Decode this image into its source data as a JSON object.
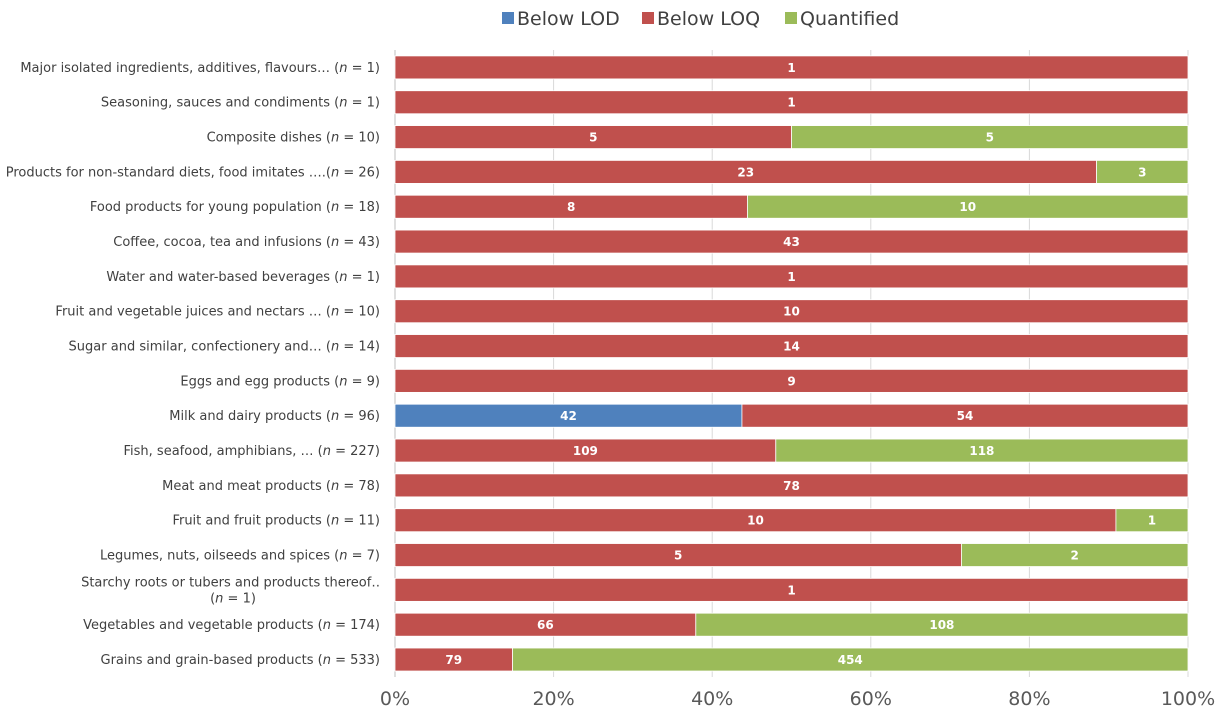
{
  "chart_data": {
    "type": "bar",
    "orientation": "horizontal",
    "stacking": "percent",
    "title": "",
    "xlabel": "",
    "ylabel": "",
    "xlim": [
      0,
      100
    ],
    "x_ticks": [
      "0%",
      "20%",
      "40%",
      "60%",
      "80%",
      "100%"
    ],
    "grid": true,
    "legend_position": "top",
    "legend": [
      "Below LOD",
      "Below LOQ",
      "Quantified"
    ],
    "colors": {
      "Below LOD": "#4f81bd",
      "Below LOQ": "#c0504d",
      "Quantified": "#9bbb59"
    },
    "categories": [
      {
        "lines": [
          [
            "Major isolated ingredients, additives, flavours… (",
            "n",
            " = 1)"
          ]
        ]
      },
      {
        "lines": [
          [
            "Seasoning, sauces and condiments (",
            "n",
            " = 1)"
          ]
        ]
      },
      {
        "lines": [
          [
            "Composite dishes (",
            "n",
            " = 10)"
          ]
        ]
      },
      {
        "lines": [
          [
            "Products for non-standard diets, food imitates ….(",
            "n",
            " = 26)"
          ]
        ]
      },
      {
        "lines": [
          [
            "Food products for young population (",
            "n",
            " = 18)"
          ]
        ]
      },
      {
        "lines": [
          [
            "Coffee, cocoa, tea and infusions (",
            "n",
            " = 43)"
          ]
        ]
      },
      {
        "lines": [
          [
            "Water and water-based beverages (",
            "n",
            " = 1)"
          ]
        ]
      },
      {
        "lines": [
          [
            "Fruit and vegetable juices and nectars … (",
            "n",
            " = 10)"
          ]
        ]
      },
      {
        "lines": [
          [
            "Sugar and similar, confectionery and… (",
            "n",
            " = 14)"
          ]
        ]
      },
      {
        "lines": [
          [
            "Eggs and egg products (",
            "n",
            " = 9)"
          ]
        ]
      },
      {
        "lines": [
          [
            "Milk and dairy products (",
            "n",
            " = 96)"
          ]
        ]
      },
      {
        "lines": [
          [
            "Fish, seafood, amphibians, … (",
            "n",
            " = 227)"
          ]
        ]
      },
      {
        "lines": [
          [
            "Meat and meat products (",
            "n",
            " = 78)"
          ]
        ]
      },
      {
        "lines": [
          [
            "Fruit and fruit products (",
            "n",
            " = 11)"
          ]
        ]
      },
      {
        "lines": [
          [
            "Legumes, nuts, oilseeds and spices (",
            "n",
            " = 7)"
          ]
        ]
      },
      {
        "lines": [
          [
            "Starchy roots or tubers and products thereof‥"
          ],
          [
            "(",
            "n",
            " = 1)"
          ]
        ]
      },
      {
        "lines": [
          [
            "Vegetables and vegetable products (",
            "n",
            " = 174)"
          ]
        ]
      },
      {
        "lines": [
          [
            "Grains and grain-based products (",
            "n",
            " = 533)"
          ]
        ]
      }
    ],
    "series": [
      {
        "name": "Below LOD",
        "values": [
          0,
          0,
          0,
          0,
          0,
          0,
          0,
          0,
          0,
          0,
          42,
          0,
          0,
          0,
          0,
          0,
          0,
          0
        ]
      },
      {
        "name": "Below LOQ",
        "values": [
          1,
          1,
          5,
          23,
          8,
          43,
          1,
          10,
          14,
          9,
          54,
          109,
          78,
          10,
          5,
          1,
          66,
          79
        ]
      },
      {
        "name": "Quantified",
        "values": [
          0,
          0,
          5,
          3,
          10,
          0,
          0,
          0,
          0,
          0,
          0,
          118,
          0,
          1,
          2,
          0,
          108,
          454
        ]
      }
    ]
  }
}
